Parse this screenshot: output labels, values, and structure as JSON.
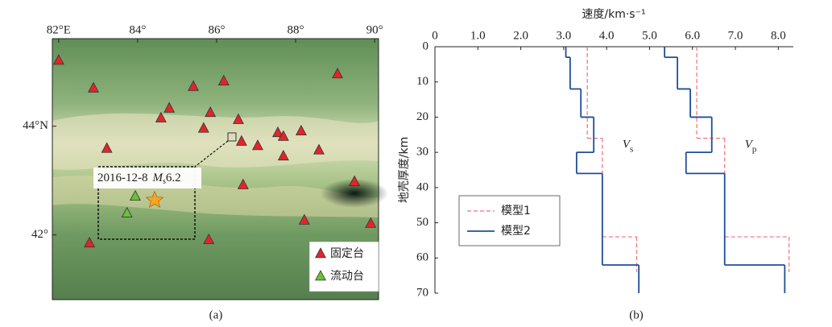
{
  "chart_data": [
    {
      "type": "scatter",
      "caption": "(a)",
      "xlim": [
        81.84,
        90.1
      ],
      "ylim": [
        40.81,
        45.61
      ],
      "xticks": [
        {
          "value": 82,
          "label": "82°E"
        },
        {
          "value": 84,
          "label": "84°"
        },
        {
          "value": 86,
          "label": "86°"
        },
        {
          "value": 88,
          "label": "88°"
        },
        {
          "value": 90,
          "label": "90°"
        }
      ],
      "yticks": [
        {
          "value": 42,
          "label": "42°"
        },
        {
          "value": 44,
          "label": "44°N"
        }
      ],
      "legend": "lower right",
      "series": [
        {
          "name": "固定台",
          "marker": "triangle",
          "color": "#e0262b",
          "x": [
            82.0,
            82.88,
            85.41,
            86.18,
            89.06,
            84.8,
            84.59,
            85.84,
            86.55,
            85.67,
            87.55,
            88.14,
            86.63,
            87.04,
            87.69,
            87.69,
            83.22,
            88.59,
            89.49,
            86.67,
            88.22,
            89.9,
            82.78,
            85.8
          ],
          "values": [
            45.21,
            44.7,
            44.73,
            44.83,
            44.96,
            44.33,
            44.15,
            44.25,
            44.12,
            43.96,
            43.88,
            43.91,
            43.72,
            43.64,
            43.45,
            43.81,
            43.59,
            43.56,
            42.98,
            42.92,
            42.27,
            42.21,
            41.85,
            41.91
          ]
        },
        {
          "name": "流动台",
          "marker": "triangle",
          "color": "#6cbf3a",
          "x": [
            83.94,
            83.73
          ],
          "values": [
            42.71,
            42.4
          ]
        }
      ],
      "event": {
        "date": "2016-12-8",
        "magnitude_symbol": "M",
        "magnitude_subscript": "s",
        "magnitude": 6.2,
        "x": 84.43,
        "y": 42.64,
        "color": "#f5a623",
        "marker": "star"
      }
    },
    {
      "type": "step",
      "caption": "(b)",
      "xlabel": "速度/km·s⁻¹",
      "ylabel": "地壳厚度/km",
      "xlim": [
        0,
        8.35
      ],
      "ylim": [
        0,
        70
      ],
      "y_inverted": true,
      "x_axis_position": "top",
      "xticks": [
        0,
        {
          "value": 1,
          "label": "1.0"
        },
        {
          "value": 2,
          "label": "2.0"
        },
        {
          "value": 3,
          "label": "3.0"
        },
        {
          "value": 4,
          "label": "4.0"
        },
        {
          "value": 5,
          "label": "5.0"
        },
        {
          "value": 6,
          "label": "6.0"
        },
        {
          "value": 7,
          "label": "7.0"
        },
        {
          "value": 8,
          "label": "8.0"
        }
      ],
      "yticks": [
        0,
        10,
        20,
        30,
        40,
        50,
        60,
        70
      ],
      "legend": "lower left",
      "series": [
        {
          "name": "模型1",
          "color": "#f0707a",
          "dashed": true,
          "profiles": [
            {
              "values": [
                3.55,
                3.9,
                4.7
              ],
              "depths": [
                0,
                26,
                54,
                64
              ]
            },
            {
              "values": [
                6.1,
                6.75,
                8.25
              ],
              "depths": [
                0,
                26,
                54,
                64
              ]
            }
          ]
        },
        {
          "name": "模型2",
          "color": "#1f4e9c",
          "dashed": false,
          "profiles": [
            {
              "values": [
                3.05,
                3.15,
                3.4,
                3.7,
                3.3,
                3.9,
                4.75
              ],
              "depths": [
                0,
                3,
                12,
                20,
                30,
                36,
                62,
                70
              ]
            },
            {
              "values": [
                5.35,
                5.65,
                5.95,
                6.45,
                5.85,
                6.75,
                8.15
              ],
              "depths": [
                0,
                3,
                12,
                20,
                30,
                36,
                62,
                70
              ]
            }
          ]
        }
      ],
      "annotations": [
        {
          "symbol": "V",
          "subscript": "s"
        },
        {
          "symbol": "V",
          "subscript": "p"
        }
      ]
    }
  ]
}
